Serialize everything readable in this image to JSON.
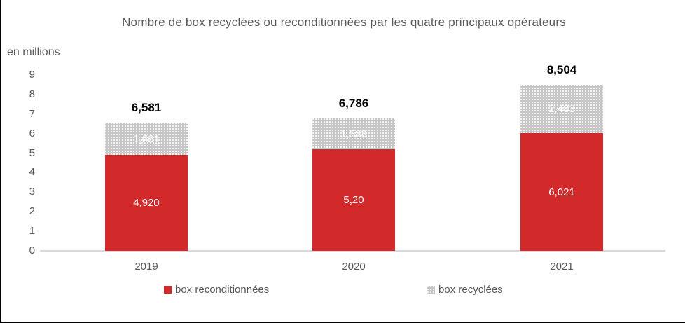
{
  "chart_data": {
    "type": "bar",
    "stacked": true,
    "title": "Nombre de box recyclées ou reconditionnées par les quatre principaux opérateurs",
    "unit_label": "en millions",
    "categories": [
      "2019",
      "2020",
      "2021"
    ],
    "series": [
      {
        "name": "box reconditionnées",
        "color": "#d2292b",
        "pattern": "solid",
        "values": [
          4.92,
          5.198,
          6.021
        ],
        "labels": [
          "4,920",
          "5,20",
          "6,021"
        ]
      },
      {
        "name": "box recyclées",
        "color": "#c6c6c6",
        "pattern": "dots",
        "values": [
          1.661,
          1.588,
          2.483
        ],
        "labels": [
          "1,661",
          "1,588",
          "2,483"
        ]
      }
    ],
    "totals": [
      "6,581",
      "6,786",
      "8,504"
    ],
    "y_ticks": [
      0,
      1,
      2,
      3,
      4,
      5,
      6,
      7,
      8,
      9
    ],
    "ylim": [
      0,
      9
    ],
    "grid": false,
    "legend_position": "bottom",
    "colors": {
      "inside_label": "#ffffff",
      "total_label": "#000000",
      "axis_line": "#d9d9d9",
      "text": "#595959",
      "frame_border": "#000000"
    }
  }
}
